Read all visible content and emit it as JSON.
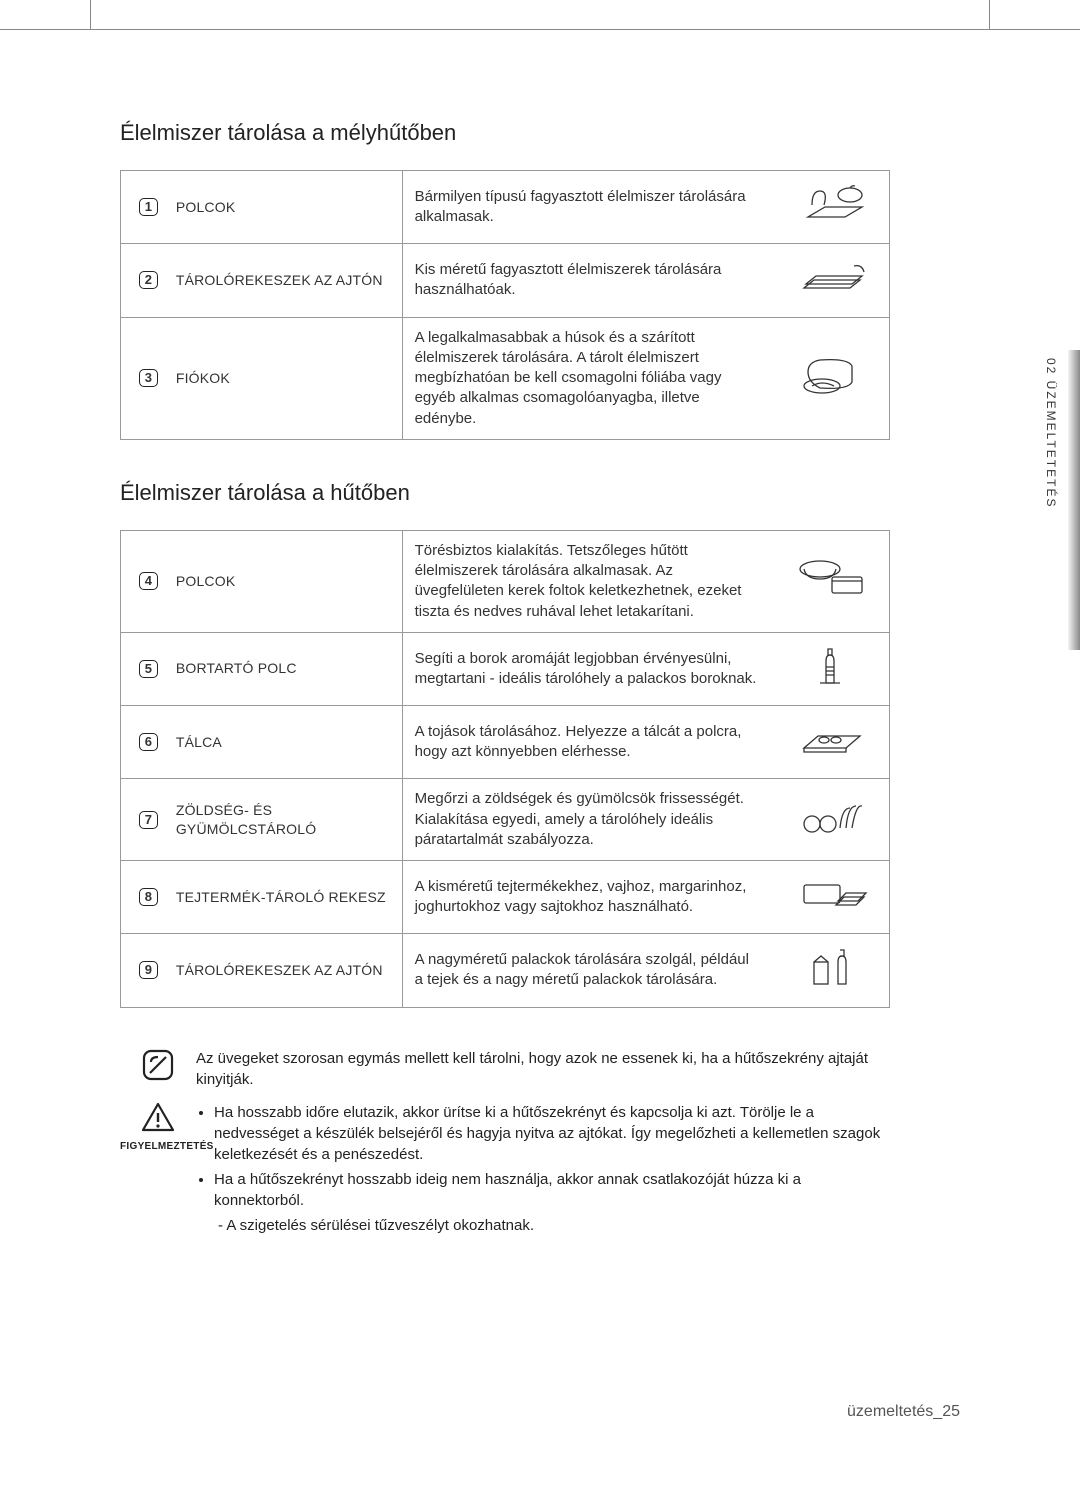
{
  "side_tab": "02 ÜZEMELTETETÉS",
  "section1": {
    "title": "Élelmiszer tárolása a mélyhűtőben",
    "rows": [
      {
        "n": "1",
        "label": "POLCOK",
        "desc": "Bármilyen típusú fagyasztott élelmiszer tárolására alkalmasak."
      },
      {
        "n": "2",
        "label": "TÁROLÓREKESZEK AZ AJTÓN",
        "desc": "Kis méretű fagyasztott élelmiszerek tárolására használhatóak."
      },
      {
        "n": "3",
        "label": "FIÓKOK",
        "desc": "A legalkalmasabbak a húsok és a szárított élelmiszerek tárolására.\nA tárolt élelmiszert megbízhatóan be kell csomagolni fóliába vagy egyéb alkalmas csomagolóanyagba, illetve edénybe."
      }
    ]
  },
  "section2": {
    "title": "Élelmiszer tárolása a hűtőben",
    "rows": [
      {
        "n": "4",
        "label": "POLCOK",
        "desc": "Törésbiztos kialakítás. Tetszőleges hűtött élelmiszerek tárolására alkalmasak. Az üvegfelületen kerek foltok keletkezhetnek, ezeket tiszta és nedves ruhával lehet letakarítani."
      },
      {
        "n": "5",
        "label": "BORTARTÓ POLC",
        "desc": "Segíti a borok aromáját legjobban érvényesülni, megtartani - ideális tárolóhely a palackos boroknak."
      },
      {
        "n": "6",
        "label": "TÁLCA",
        "desc": "A tojások tárolásához.\nHelyezze a tálcát a polcra, hogy azt könnyebben elérhesse."
      },
      {
        "n": "7",
        "label": "ZÖLDSÉG- ÉS GYÜMÖLCSTÁROLÓ",
        "desc": "Megőrzi a zöldségek és gyümölcsök frissességét. Kialakítása egyedi, amely a tárolóhely ideális páratartalmát szabályozza."
      },
      {
        "n": "8",
        "label": "TEJTERMÉK-TÁROLÓ REKESZ",
        "desc": "A kisméretű tejtermékekhez, vajhoz, margarinhoz, joghurtokhoz vagy sajtokhoz használható."
      },
      {
        "n": "9",
        "label": "TÁROLÓREKESZEK AZ AJTÓN",
        "desc": "A nagyméretű palackok tárolására szolgál, például a tejek és a nagy méretű palackok tárolására."
      }
    ]
  },
  "note1": "Az üvegeket szorosan egymás mellett kell tárolni, hogy azok ne essenek ki, ha a hűtőszekrény ajtaját kinyitják.",
  "warning_label": "FIGYELMEZTETÉS",
  "warning_bullets": [
    "Ha hosszabb időre elutazik, akkor ürítse ki a hűtőszekrényt és kapcsolja ki azt. Törölje le a nedvességet a készülék belsejéről és hagyja nyitva az ajtókat. Így megelőzheti a kellemetlen szagok keletkezését és a penészedést.",
    "Ha a hűtőszekrényt hosszabb ideig nem használja, akkor annak csatlakozóját húzza ki a konnektorból."
  ],
  "warning_sub": "-   A szigetelés sérülései tűzveszélyt okozhatnak.",
  "footer": "üzemeltetés_25"
}
